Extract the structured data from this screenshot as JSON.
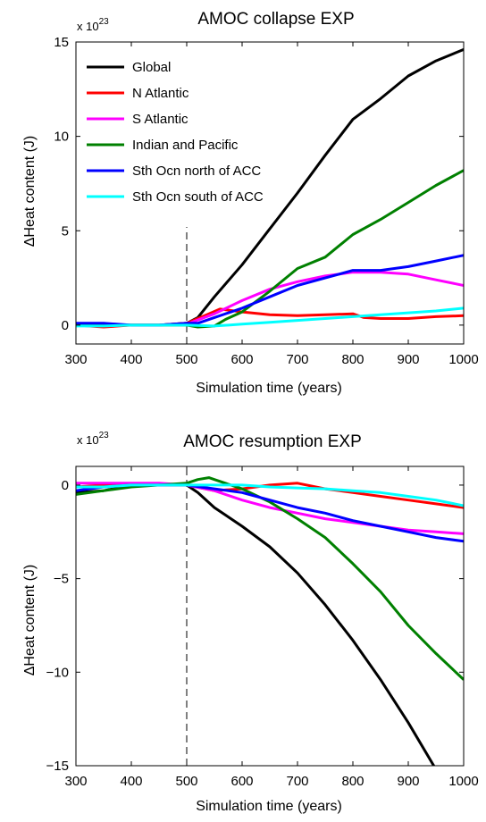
{
  "figure": {
    "panels": [
      {
        "title": "AMOC collapse EXP",
        "multiplier": "x 10",
        "multiplier_exp": "23",
        "xlabel": "Simulation time (years)",
        "ylabel": "ΔHeat content (J)"
      },
      {
        "title": "AMOC resumption EXP",
        "multiplier": "x 10",
        "multiplier_exp": "23",
        "xlabel": "Simulation time (years)",
        "ylabel": "ΔHeat content (J)"
      }
    ]
  },
  "chart_data": [
    {
      "type": "line",
      "title": "AMOC collapse EXP",
      "xlabel": "Simulation time (years)",
      "ylabel": "ΔHeat content (J)",
      "y_multiplier": "x 10^23",
      "xlim": [
        300,
        1000
      ],
      "ylim": [
        -1,
        15
      ],
      "xticks": [
        300,
        400,
        500,
        600,
        700,
        800,
        900,
        1000
      ],
      "yticks": [
        0,
        5,
        10,
        15
      ],
      "vline_x": 500,
      "legend_position": "top-left",
      "series": [
        {
          "name": "Global",
          "color": "#000000",
          "x": [
            300,
            350,
            400,
            450,
            500,
            520,
            550,
            600,
            650,
            700,
            750,
            800,
            850,
            900,
            950,
            1000
          ],
          "y": [
            0.05,
            0,
            0,
            0,
            0.1,
            0.4,
            1.5,
            3.2,
            5.1,
            7.0,
            9.0,
            10.9,
            12.0,
            13.2,
            14.0,
            14.6
          ]
        },
        {
          "name": "N Atlantic",
          "color": "#ff0000",
          "x": [
            300,
            350,
            400,
            450,
            500,
            540,
            560,
            600,
            650,
            700,
            750,
            800,
            820,
            850,
            900,
            950,
            1000
          ],
          "y": [
            0,
            -0.1,
            0,
            0,
            0.1,
            0.6,
            0.85,
            0.7,
            0.55,
            0.5,
            0.55,
            0.6,
            0.4,
            0.35,
            0.35,
            0.45,
            0.5
          ]
        },
        {
          "name": "S Atlantic",
          "color": "#ff00ff",
          "x": [
            300,
            350,
            400,
            450,
            500,
            550,
            600,
            650,
            700,
            750,
            800,
            850,
            900,
            950,
            1000
          ],
          "y": [
            0,
            0,
            0,
            0,
            0.05,
            0.6,
            1.3,
            1.9,
            2.3,
            2.6,
            2.8,
            2.8,
            2.7,
            2.4,
            2.1
          ]
        },
        {
          "name": "Indian and Pacific",
          "color": "#008000",
          "x": [
            300,
            350,
            400,
            450,
            500,
            520,
            550,
            570,
            600,
            650,
            700,
            750,
            800,
            850,
            900,
            950,
            1000
          ],
          "y": [
            0,
            0,
            0,
            0,
            0,
            -0.1,
            -0.05,
            0.3,
            0.7,
            1.8,
            3.0,
            3.6,
            4.8,
            5.6,
            6.5,
            7.4,
            8.2
          ]
        },
        {
          "name": "Sth Ocn north of ACC",
          "color": "#0000ff",
          "x": [
            300,
            350,
            400,
            450,
            500,
            520,
            550,
            600,
            650,
            700,
            750,
            800,
            850,
            900,
            950,
            1000
          ],
          "y": [
            0.1,
            0.1,
            0,
            0,
            0.1,
            0.1,
            0.4,
            0.9,
            1.5,
            2.1,
            2.5,
            2.9,
            2.9,
            3.1,
            3.4,
            3.7
          ]
        },
        {
          "name": "Sth Ocn south of ACC",
          "color": "#00ffff",
          "x": [
            300,
            350,
            400,
            450,
            500,
            550,
            600,
            650,
            700,
            750,
            800,
            850,
            900,
            950,
            1000
          ],
          "y": [
            -0.05,
            -0.05,
            0,
            0,
            0,
            -0.05,
            0.05,
            0.15,
            0.25,
            0.35,
            0.45,
            0.55,
            0.65,
            0.75,
            0.9
          ]
        }
      ]
    },
    {
      "type": "line",
      "title": "AMOC resumption EXP",
      "xlabel": "Simulation time (years)",
      "ylabel": "ΔHeat content (J)",
      "y_multiplier": "x 10^23",
      "xlim": [
        300,
        1000
      ],
      "ylim": [
        -15,
        1
      ],
      "xticks": [
        300,
        400,
        500,
        600,
        700,
        800,
        900,
        1000
      ],
      "yticks": [
        -15,
        -10,
        -5,
        0
      ],
      "vline_x": 500,
      "series": [
        {
          "name": "Global",
          "color": "#000000",
          "x": [
            300,
            350,
            400,
            450,
            500,
            520,
            550,
            600,
            650,
            700,
            750,
            800,
            850,
            900,
            950
          ],
          "y": [
            -0.4,
            -0.3,
            0,
            0,
            0,
            -0.4,
            -1.2,
            -2.2,
            -3.3,
            -4.7,
            -6.4,
            -8.3,
            -10.4,
            -12.7,
            -15.2
          ]
        },
        {
          "name": "N Atlantic",
          "color": "#ff0000",
          "x": [
            300,
            350,
            400,
            450,
            500,
            550,
            600,
            650,
            700,
            750,
            800,
            850,
            900,
            950,
            1000
          ],
          "y": [
            -0.1,
            0,
            0,
            0,
            0,
            -0.3,
            -0.2,
            0,
            0.1,
            -0.2,
            -0.4,
            -0.6,
            -0.8,
            -1.0,
            -1.2
          ]
        },
        {
          "name": "S Atlantic",
          "color": "#ff00ff",
          "x": [
            300,
            350,
            400,
            450,
            500,
            550,
            600,
            650,
            700,
            750,
            800,
            850,
            900,
            950,
            1000
          ],
          "y": [
            0.1,
            0.1,
            0.1,
            0.1,
            0,
            -0.3,
            -0.8,
            -1.2,
            -1.5,
            -1.8,
            -2.0,
            -2.2,
            -2.4,
            -2.5,
            -2.6
          ]
        },
        {
          "name": "Indian and Pacific",
          "color": "#008000",
          "x": [
            300,
            350,
            400,
            450,
            500,
            520,
            540,
            550,
            600,
            650,
            700,
            750,
            800,
            850,
            900,
            950,
            1000
          ],
          "y": [
            -0.5,
            -0.3,
            -0.1,
            0,
            0.1,
            0.3,
            0.4,
            0.3,
            -0.2,
            -0.9,
            -1.8,
            -2.8,
            -4.2,
            -5.7,
            -7.5,
            -9.0,
            -10.4
          ]
        },
        {
          "name": "Sth Ocn north of ACC",
          "color": "#0000ff",
          "x": [
            300,
            350,
            400,
            450,
            500,
            550,
            600,
            650,
            700,
            750,
            800,
            850,
            900,
            950,
            1000
          ],
          "y": [
            -0.3,
            -0.1,
            0,
            0,
            0,
            -0.2,
            -0.4,
            -0.8,
            -1.2,
            -1.5,
            -1.9,
            -2.2,
            -2.5,
            -2.8,
            -3.0
          ]
        },
        {
          "name": "Sth Ocn south of ACC",
          "color": "#00ffff",
          "x": [
            300,
            350,
            400,
            450,
            500,
            550,
            600,
            650,
            700,
            750,
            800,
            850,
            900,
            950,
            1000
          ],
          "y": [
            -0.1,
            -0.1,
            0,
            0,
            0,
            0,
            0,
            -0.1,
            -0.15,
            -0.2,
            -0.3,
            -0.4,
            -0.6,
            -0.8,
            -1.1
          ]
        }
      ]
    }
  ]
}
